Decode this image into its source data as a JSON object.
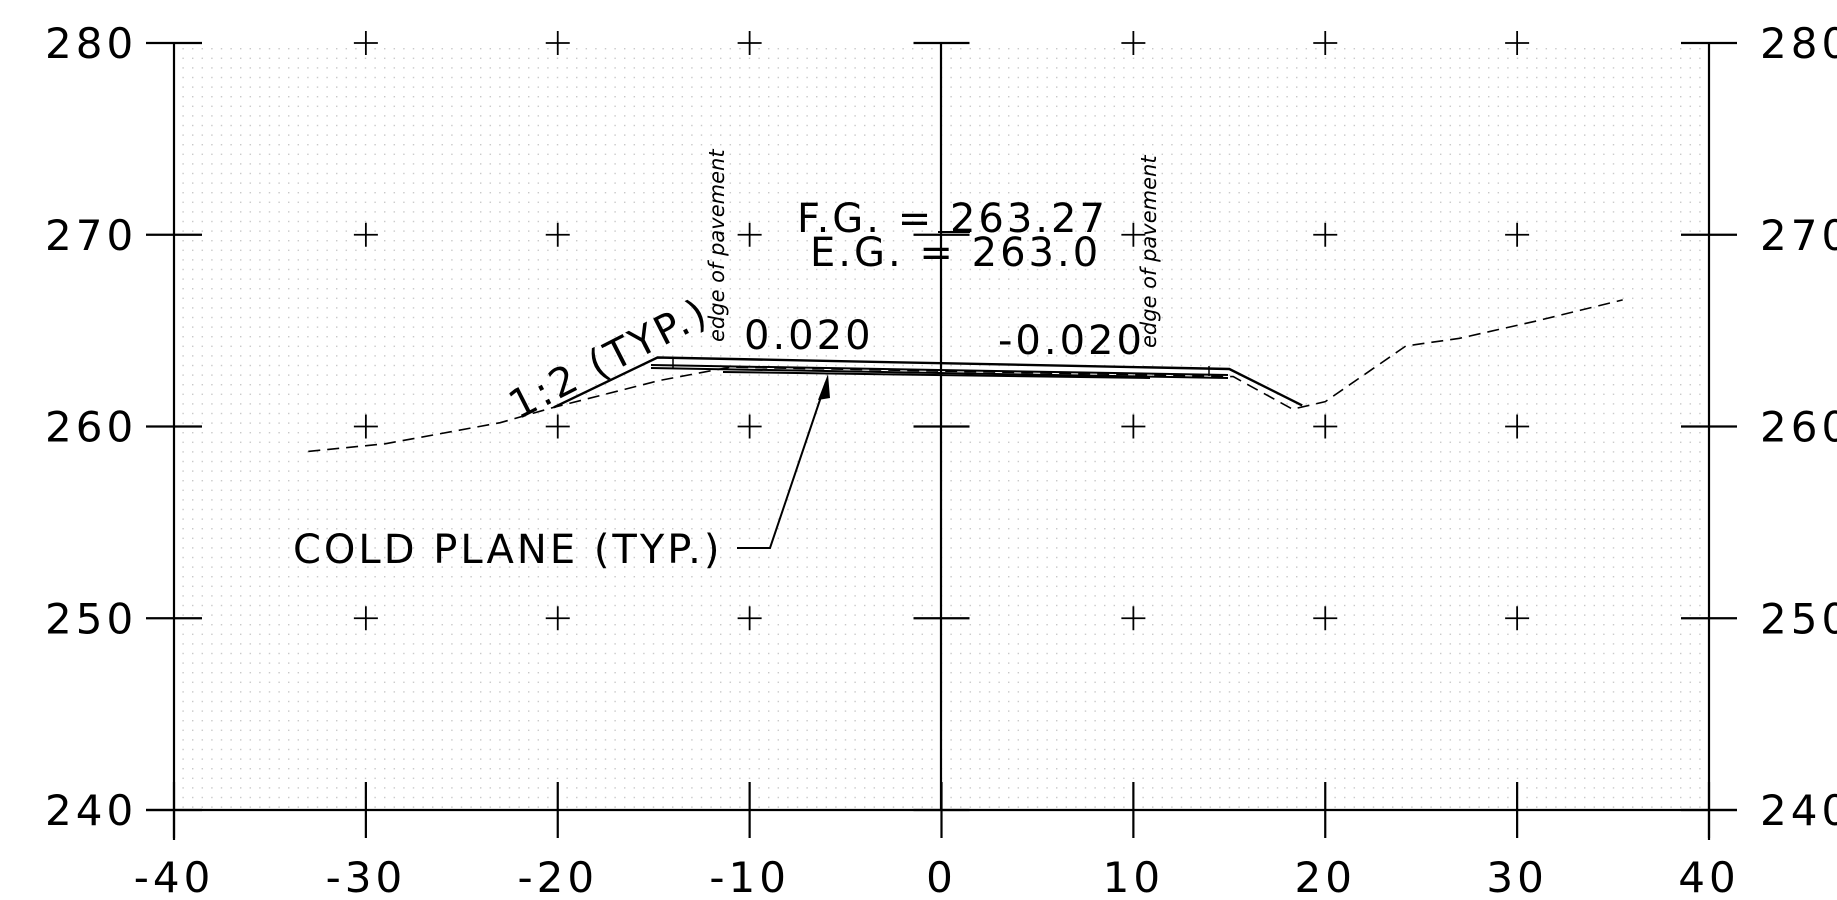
{
  "drawing": {
    "x_ticks": [
      "-40",
      "-30",
      "-20",
      "-10",
      "0",
      "10",
      "20",
      "30",
      "40"
    ],
    "y_ticks": [
      "240",
      "250",
      "260",
      "270",
      "280"
    ],
    "x_range": [
      -40,
      40
    ],
    "y_range": [
      240,
      280
    ],
    "finished_grade_label": "F.G. = 263.27",
    "existing_grade_label": "E.G. = 263.0",
    "slope_label": "1:2 (TYP.)",
    "cross_slope_left": "0.020",
    "cross_slope_right": "-0.020",
    "edge_label_left": "edge of pavement",
    "edge_label_right": "edge of pavement",
    "callout_label": "COLD PLANE (TYP.)",
    "finished_grade_points": [
      [
        -20.2,
        261.0
      ],
      [
        -14.8,
        263.6
      ],
      [
        0,
        263.3
      ],
      [
        15.0,
        263.0
      ],
      [
        18.8,
        261.1
      ]
    ],
    "existing_grade_points": [
      [
        -33,
        258.7
      ],
      [
        -29,
        259.1
      ],
      [
        -23,
        260.2
      ],
      [
        -20.2,
        261.0
      ],
      [
        -14.7,
        262.4
      ],
      [
        -11,
        263.1
      ],
      [
        15.2,
        262.6
      ],
      [
        18.3,
        260.9
      ],
      [
        20,
        261.3
      ],
      [
        24.2,
        264.2
      ],
      [
        27,
        264.6
      ],
      [
        31,
        265.5
      ],
      [
        35.5,
        266.6
      ]
    ],
    "colors": {
      "line": "#000000",
      "grid_dot": "#c8c8c8",
      "background": "#ffffff"
    }
  }
}
